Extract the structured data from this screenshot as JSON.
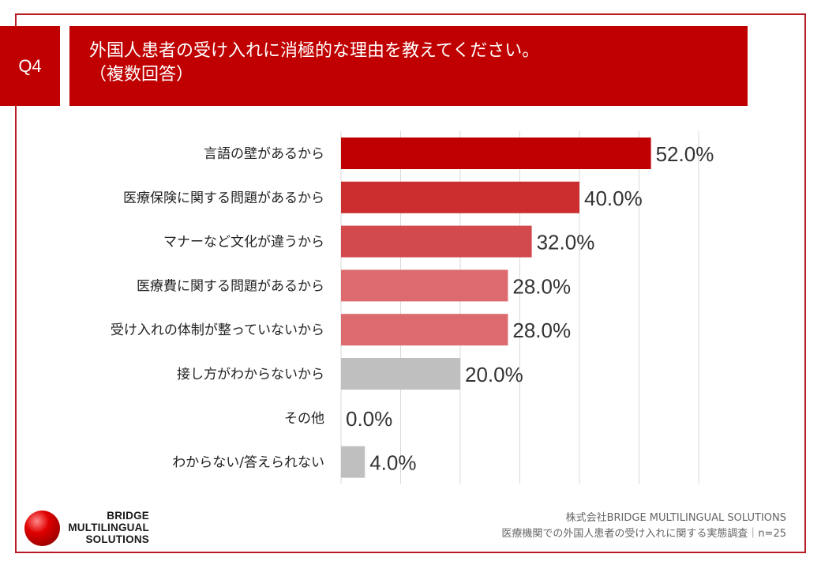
{
  "header": {
    "badge": "Q4",
    "question_line1": "外国人患者の受け入れに消極的な理由を教えてください。",
    "question_line2": "（複数回答）"
  },
  "chart_data": {
    "type": "bar",
    "orientation": "horizontal",
    "title": "外国人患者の受け入れに消極的な理由を教えてください。（複数回答）",
    "categories": [
      "言語の壁があるから",
      "医療保険に関する問題があるから",
      "マナーなど文化が違うから",
      "医療費に関する問題があるから",
      "受け入れの体制が整っていないから",
      "接し方がわからないから",
      "その他",
      "わからない/答えられない"
    ],
    "values": [
      52.0,
      40.0,
      32.0,
      28.0,
      28.0,
      20.0,
      0.0,
      4.0
    ],
    "value_labels": [
      "52.0%",
      "40.0%",
      "32.0%",
      "28.0%",
      "28.0%",
      "20.0%",
      "0.0%",
      "4.0%"
    ],
    "bar_colors": [
      "#c00000",
      "#cc2e30",
      "#d24a4e",
      "#dc6a6e",
      "#dc6a6e",
      "#bfbfbf",
      "#bfbfbf",
      "#bfbfbf"
    ],
    "xlim": [
      0,
      60
    ],
    "grid": true,
    "xlabel": "",
    "ylabel": ""
  },
  "logo": {
    "line1": "BRIDGE",
    "line2": "MULTILINGUAL",
    "line3": "SOLUTIONS"
  },
  "footer": {
    "company": "株式会社BRIDGE MULTILINGUAL SOLUTIONS",
    "survey": "医療機関での外国人患者の受け入れに関する実態調査｜n=25"
  }
}
